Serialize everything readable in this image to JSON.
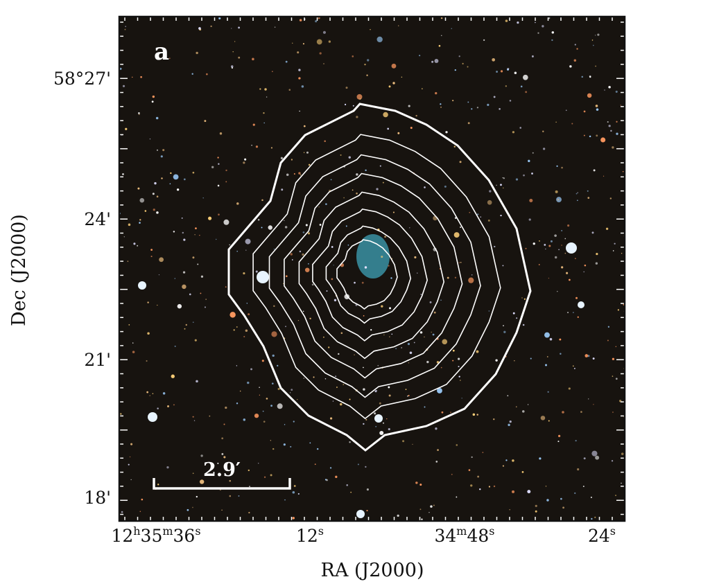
{
  "panel_label": "a",
  "scale_bar": {
    "label": "2.9′"
  },
  "x_axis": {
    "label": "RA (J2000)",
    "tick_labels": [
      [
        "12",
        "h",
        "35",
        "m",
        "36",
        "s"
      ],
      [
        "12",
        "s"
      ],
      [
        "34",
        "m",
        "48",
        "s"
      ],
      [
        "24",
        "s"
      ]
    ]
  },
  "y_axis": {
    "label": "Dec (J2000)",
    "tick_labels": [
      "58°27'",
      "24'",
      "21'",
      "18'"
    ]
  }
}
